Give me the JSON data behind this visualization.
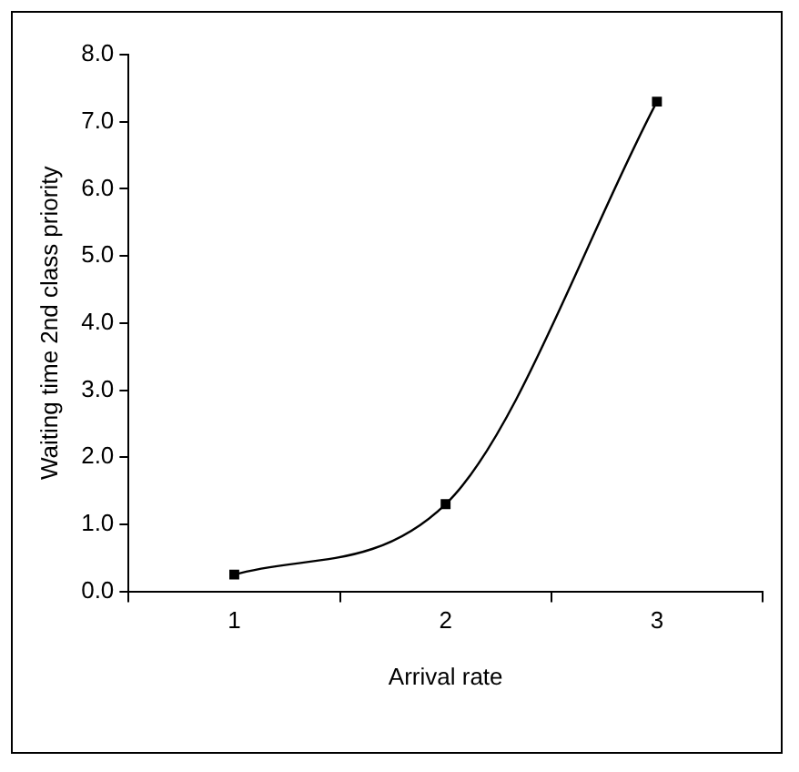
{
  "chart_data": {
    "type": "line",
    "xlabel": "Arrival rate",
    "ylabel": "Waiting time 2nd class priority",
    "categories": [
      "1",
      "2",
      "3"
    ],
    "series": [
      {
        "color": "#000000",
        "values": [
          0.25,
          1.3,
          7.3
        ]
      }
    ],
    "ylim": [
      0,
      8
    ],
    "yticks": [
      {
        "value": 0,
        "label": "0.0"
      },
      {
        "value": 1,
        "label": "1.0"
      },
      {
        "value": 2,
        "label": "2.0"
      },
      {
        "value": 3,
        "label": "3.0"
      },
      {
        "value": 4,
        "label": "4.0"
      },
      {
        "value": 5,
        "label": "5.0"
      },
      {
        "value": 6,
        "label": "6.0"
      },
      {
        "value": 7,
        "label": "7.0"
      },
      {
        "value": 8,
        "label": "8.0"
      }
    ],
    "grid": false,
    "legend": false,
    "marker": "square",
    "line_style": "solid"
  }
}
